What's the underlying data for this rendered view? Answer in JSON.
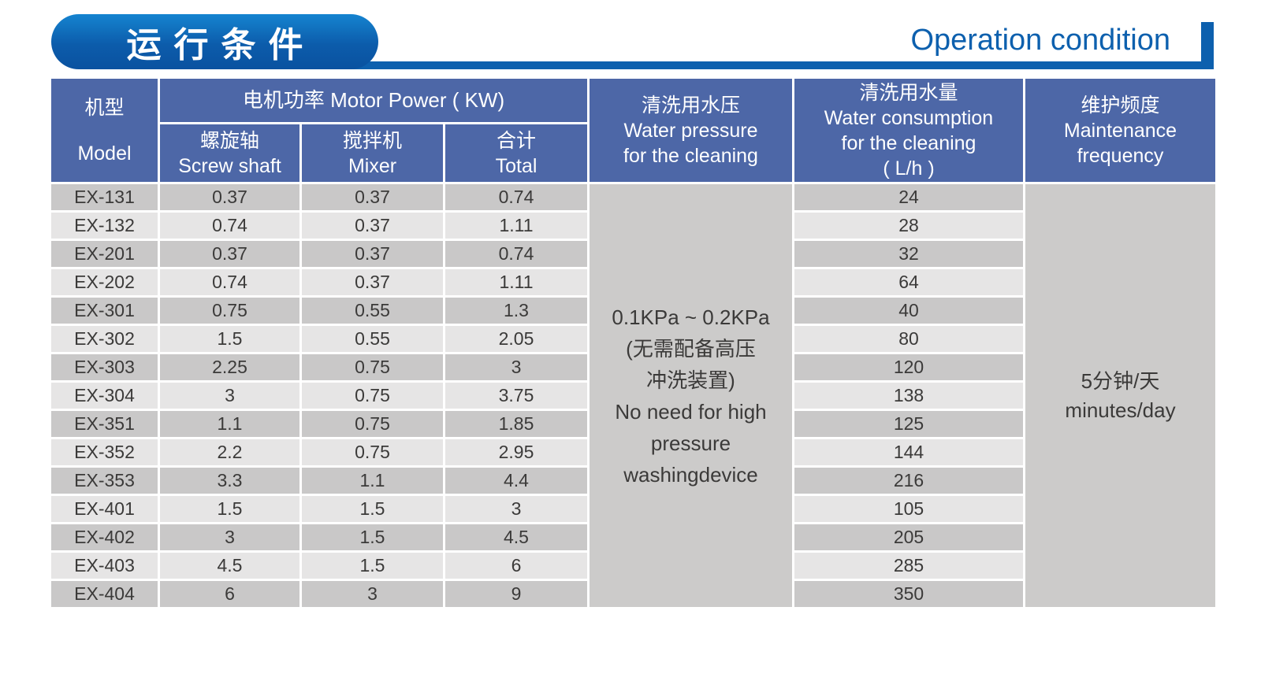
{
  "title": {
    "zh": "运行条件",
    "en": "Operation condition"
  },
  "colors": {
    "header-blue": "#4d67a7",
    "row-dark": "#c9c8c8",
    "row-light": "#e6e5e5",
    "merged-gray": "#cccbca",
    "accent-blue": "#0d60ae",
    "pill-top": "#1584d0",
    "pill-mid": "#0c5cab",
    "pill-bottom": "#0a52a0",
    "body-text": "#3b3a39"
  },
  "table": {
    "headers": {
      "model_zh": "机型",
      "model_en": "Model",
      "motor_power": "电机功率  Motor Power ( KW)",
      "screw_zh": "螺旋轴",
      "screw_en": "Screw shaft",
      "mixer_zh": "搅拌机",
      "mixer_en": "Mixer",
      "total_zh": "合计",
      "total_en": "Total",
      "pressure": [
        "清洗用水压",
        "Water pressure",
        "for the cleaning"
      ],
      "consumption": [
        "清洗用水量",
        "Water consumption",
        "for the cleaning",
        "( L/h )"
      ],
      "maintenance": [
        "维护频度",
        "Maintenance",
        "frequency"
      ]
    },
    "pressure_cell": [
      "0.1KPa ~ 0.2KPa",
      "(无需配备高压",
      "冲洗装置)",
      "No need for high",
      "pressure",
      "washingdevice"
    ],
    "maintenance_cell": [
      "5分钟/天",
      "minutes/day"
    ],
    "rows": [
      {
        "model": "EX-131",
        "screw": "0.37",
        "mixer": "0.37",
        "total": "0.74",
        "consumption": "24"
      },
      {
        "model": "EX-132",
        "screw": "0.74",
        "mixer": "0.37",
        "total": "1.11",
        "consumption": "28"
      },
      {
        "model": "EX-201",
        "screw": "0.37",
        "mixer": "0.37",
        "total": "0.74",
        "consumption": "32"
      },
      {
        "model": "EX-202",
        "screw": "0.74",
        "mixer": "0.37",
        "total": "1.11",
        "consumption": "64"
      },
      {
        "model": "EX-301",
        "screw": "0.75",
        "mixer": "0.55",
        "total": "1.3",
        "consumption": "40"
      },
      {
        "model": "EX-302",
        "screw": "1.5",
        "mixer": "0.55",
        "total": "2.05",
        "consumption": "80"
      },
      {
        "model": "EX-303",
        "screw": "2.25",
        "mixer": "0.75",
        "total": "3",
        "consumption": "120"
      },
      {
        "model": "EX-304",
        "screw": "3",
        "mixer": "0.75",
        "total": "3.75",
        "consumption": "138"
      },
      {
        "model": "EX-351",
        "screw": "1.1",
        "mixer": "0.75",
        "total": "1.85",
        "consumption": "125"
      },
      {
        "model": "EX-352",
        "screw": "2.2",
        "mixer": "0.75",
        "total": "2.95",
        "consumption": "144"
      },
      {
        "model": "EX-353",
        "screw": "3.3",
        "mixer": "1.1",
        "total": "4.4",
        "consumption": "216"
      },
      {
        "model": "EX-401",
        "screw": "1.5",
        "mixer": "1.5",
        "total": "3",
        "consumption": "105"
      },
      {
        "model": "EX-402",
        "screw": "3",
        "mixer": "1.5",
        "total": "4.5",
        "consumption": "205"
      },
      {
        "model": "EX-403",
        "screw": "4.5",
        "mixer": "1.5",
        "total": "6",
        "consumption": "285"
      },
      {
        "model": "EX-404",
        "screw": "6",
        "mixer": "3",
        "total": "9",
        "consumption": "350"
      }
    ]
  }
}
